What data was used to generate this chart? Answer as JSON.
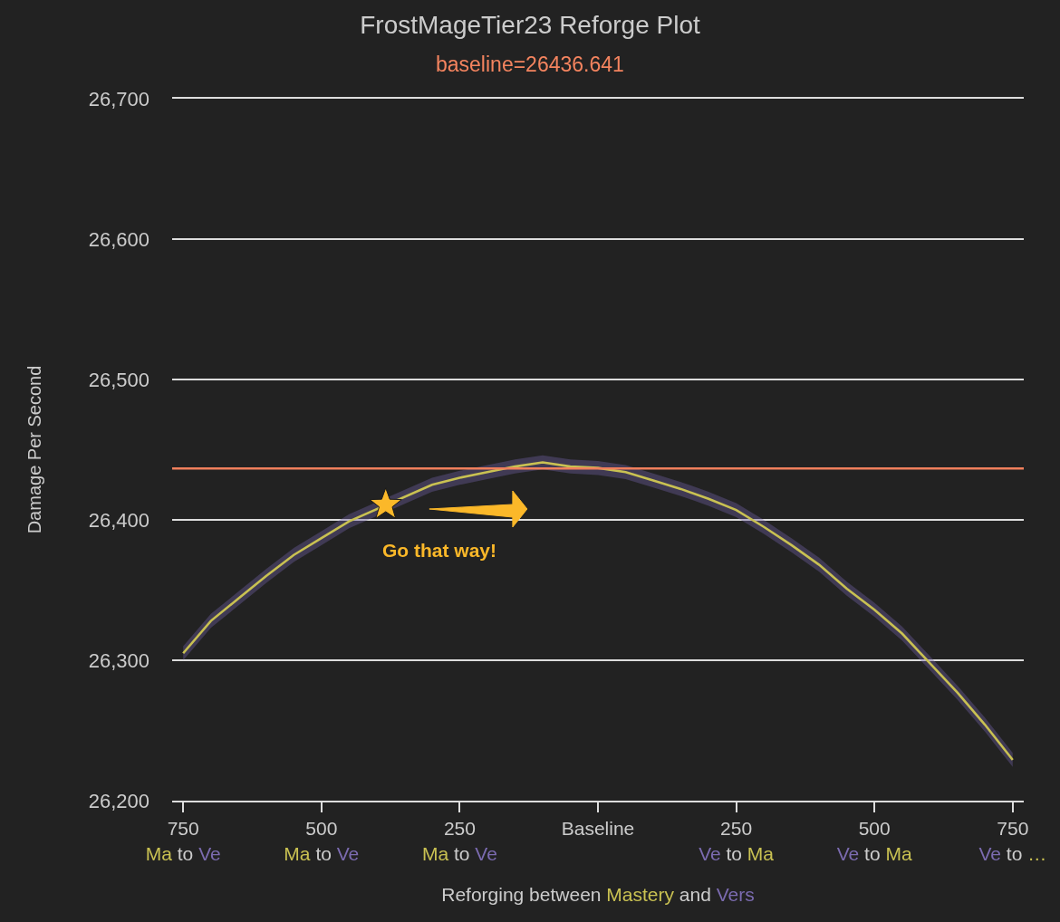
{
  "chart_data": {
    "type": "line",
    "title": "FrostMageTier23 Reforge Plot",
    "subtitle": "baseline=26436.641",
    "xlabel": "Reforging between Mastery and Vers",
    "ylabel": "Damage Per Second",
    "x": [
      -750,
      -700,
      -650,
      -600,
      -550,
      -500,
      -450,
      -300,
      -250,
      -200,
      -150,
      -100,
      -50,
      0,
      50,
      100,
      150,
      200,
      250,
      300,
      350,
      400,
      450,
      500,
      550,
      600,
      650,
      700,
      750
    ],
    "series": [
      {
        "color": "#c9c152",
        "values": [
          26305,
          26328,
          26344,
          26360,
          26375,
          26387,
          26399,
          26425,
          26430,
          26434,
          26438,
          26441,
          26438,
          26437,
          26434,
          26428,
          26422,
          26415,
          26407,
          26395,
          26382,
          26368,
          26351,
          26336,
          26319,
          26298,
          26277,
          26254,
          26229
        ],
        "lower": [
          26300,
          26323,
          26339,
          26355,
          26370,
          26382,
          26394,
          26420,
          26425,
          26429,
          26433,
          26436,
          26433,
          26432,
          26429,
          26423,
          26417,
          26410,
          26402,
          26390,
          26377,
          26363,
          26346,
          26331,
          26314,
          26293,
          26272,
          26249,
          26224
        ],
        "upper": [
          26310,
          26333,
          26349,
          26365,
          26380,
          26392,
          26404,
          26430,
          26435,
          26439,
          26443,
          26446,
          26443,
          26442,
          26439,
          26433,
          26427,
          26420,
          26412,
          26400,
          26387,
          26373,
          26356,
          26341,
          26324,
          26303,
          26282,
          26259,
          26234
        ]
      }
    ],
    "xlim": [
      -770,
      770
    ],
    "xticks": [
      {
        "value": -750,
        "label": "750\nMa to Ve"
      },
      {
        "value": -500,
        "label": "500\nMa to Ve"
      },
      {
        "value": -250,
        "label": "250\nMa to Ve"
      },
      {
        "value": 0,
        "label": "Baseline"
      },
      {
        "value": 250,
        "label": "250\nVe to Ma"
      },
      {
        "value": 500,
        "label": "500\nVe to Ma"
      },
      {
        "value": 750,
        "label": "750\nVe to …"
      }
    ],
    "ylim": [
      26200,
      26700
    ],
    "yticks": [
      {
        "value": 26200,
        "label": "26,200"
      },
      {
        "value": 26300,
        "label": "26,300"
      },
      {
        "value": 26400,
        "label": "26,400"
      },
      {
        "value": 26500,
        "label": "26,500"
      },
      {
        "value": 26600,
        "label": "26,600"
      },
      {
        "value": 26700,
        "label": "26,700"
      }
    ],
    "ref_lines": [
      {
        "axis": "y",
        "value": 26436.641,
        "color": "#f07f5c"
      }
    ],
    "annotations": [
      "Go that way!"
    ],
    "grid": "y"
  }
}
